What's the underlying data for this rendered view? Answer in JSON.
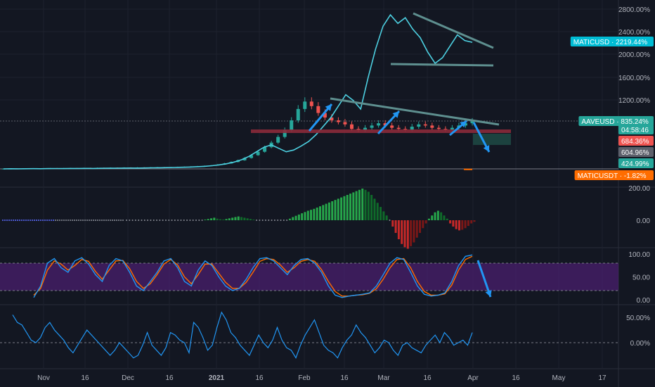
{
  "chart_data": {
    "type": "line",
    "x_axis": {
      "tick_labels": [
        "Nov",
        "16",
        "Dec",
        "16",
        "2021",
        "16",
        "Feb",
        "16",
        "Mar",
        "16",
        "Apr",
        "16",
        "May",
        "17"
      ],
      "bold_label": "2021"
    },
    "main_pane": {
      "y_tick_labels": [
        "2800.00%",
        "2400.00%",
        "2000.00%",
        "1600.00%",
        "1200.00%"
      ],
      "yscale": "percent",
      "series": [
        {
          "name": "AAVEUSD",
          "style": "candles",
          "color_up": "#26a69a",
          "color_down": "#ef5350",
          "closes": [
            3,
            5,
            4,
            7,
            6,
            9,
            8,
            11,
            10,
            12,
            14,
            13,
            16,
            15,
            18,
            17,
            20,
            19,
            22,
            21,
            24,
            23,
            26,
            28,
            27,
            30,
            33,
            36,
            40,
            45,
            52,
            60,
            75,
            95,
            120,
            150,
            190,
            240,
            300,
            380,
            460,
            560,
            680,
            850,
            1050,
            1180,
            1100,
            980,
            900,
            850,
            820,
            780,
            700,
            680,
            720,
            760,
            800,
            760,
            720,
            700,
            690,
            740,
            780,
            760,
            720,
            700,
            690,
            720,
            760,
            800,
            835
          ]
        },
        {
          "name": "MATICUSD",
          "style": "line",
          "color": "#4dd0e1",
          "values": [
            0,
            2,
            1,
            3,
            4,
            3,
            5,
            6,
            5,
            7,
            8,
            9,
            8,
            10,
            12,
            11,
            13,
            15,
            14,
            16,
            18,
            20,
            22,
            25,
            28,
            32,
            38,
            45,
            55,
            70,
            90,
            120,
            160,
            220,
            300,
            380,
            420,
            360,
            300,
            330,
            400,
            480,
            600,
            750,
            900,
            1100,
            1300,
            1200,
            1050,
            1600,
            2100,
            2500,
            2700,
            2550,
            2650,
            2450,
            2300,
            2050,
            1850,
            1950,
            2150,
            2350,
            2250,
            2219
          ]
        },
        {
          "name": "MATICUSDT",
          "style": "line",
          "color": "#ff6d00",
          "values": [
            -1.5,
            -1.82,
            -1.7,
            -1.82
          ]
        }
      ],
      "legend": [
        {
          "label": "MATICUSD",
          "value": "2219.44%",
          "color": "#00bcd4"
        },
        {
          "label": "AAVEUSD",
          "value": "835.24%",
          "color": "#26a69a"
        },
        {
          "label": "",
          "value": "04:58:46",
          "color": "#26a69a"
        },
        {
          "label": "",
          "value": "684.36%",
          "color": "#ef5350"
        },
        {
          "label": "",
          "value": "604.96%",
          "color": "#5d606b"
        },
        {
          "label": "",
          "value": "424.99%",
          "color": "#26a69a"
        },
        {
          "label": "MATICUSDT",
          "value": "-1.82%",
          "color": "#ff6d00"
        }
      ]
    },
    "histogram_pane": {
      "y_tick_labels": [
        "200.00",
        "0.00"
      ],
      "values": [
        0,
        0,
        0,
        0,
        0,
        0,
        0,
        0,
        0,
        0,
        0,
        0,
        0,
        0,
        0,
        0,
        0,
        0,
        0,
        0,
        0,
        0,
        0,
        0,
        0,
        0,
        2,
        4,
        6,
        8,
        5,
        3,
        2,
        4,
        6,
        8,
        10,
        12,
        10,
        8,
        6,
        4,
        2,
        0,
        0,
        0,
        0,
        0,
        0,
        0,
        0,
        0,
        0,
        0,
        5,
        10,
        14,
        18,
        22,
        26,
        30,
        33,
        36,
        40,
        44,
        48,
        52,
        56,
        60,
        64,
        68,
        72,
        76,
        80,
        84,
        88,
        92,
        96,
        100,
        96,
        90,
        80,
        68,
        55,
        42,
        28,
        15,
        0,
        -20,
        -40,
        -60,
        -75,
        -85,
        -90,
        -82,
        -70,
        -55,
        -40,
        -25,
        -10,
        5,
        15,
        25,
        30,
        25,
        15,
        5,
        -10,
        -20,
        -28,
        -32,
        -30,
        -25,
        -18,
        -10,
        -5
      ]
    },
    "stoch_pane": {
      "y_tick_labels": [
        "100.00",
        "50.00",
        "0.00"
      ],
      "band": [
        20,
        80
      ],
      "k": [
        5,
        30,
        80,
        90,
        70,
        60,
        85,
        92,
        78,
        55,
        40,
        75,
        90,
        85,
        60,
        30,
        20,
        40,
        60,
        85,
        90,
        70,
        40,
        30,
        65,
        85,
        75,
        50,
        30,
        20,
        25,
        45,
        70,
        90,
        92,
        85,
        70,
        55,
        75,
        88,
        90,
        80,
        60,
        30,
        10,
        5,
        8,
        10,
        12,
        15,
        30,
        55,
        80,
        92,
        88,
        60,
        30,
        12,
        8,
        10,
        15,
        40,
        75,
        95,
        98
      ],
      "d": [
        10,
        25,
        65,
        85,
        78,
        65,
        75,
        88,
        84,
        62,
        45,
        65,
        85,
        86,
        68,
        40,
        25,
        35,
        55,
        78,
        88,
        76,
        50,
        35,
        55,
        78,
        78,
        58,
        38,
        25,
        25,
        38,
        60,
        84,
        90,
        88,
        76,
        60,
        70,
        84,
        88,
        84,
        66,
        40,
        18,
        8,
        8,
        10,
        11,
        14,
        24,
        45,
        70,
        88,
        90,
        70,
        40,
        18,
        10,
        10,
        13,
        32,
        65,
        88,
        95
      ]
    },
    "roc_pane": {
      "y_tick_labels": [
        "50.00%",
        "0.00%"
      ],
      "values": [
        55,
        40,
        35,
        20,
        5,
        0,
        10,
        30,
        40,
        25,
        15,
        5,
        -10,
        -20,
        -5,
        10,
        25,
        15,
        5,
        -5,
        -15,
        -25,
        -15,
        0,
        -10,
        -20,
        -30,
        -25,
        -5,
        20,
        -5,
        -15,
        -25,
        -10,
        20,
        15,
        5,
        0,
        -20,
        40,
        30,
        10,
        -15,
        -5,
        30,
        60,
        45,
        20,
        10,
        -5,
        -15,
        -25,
        -5,
        15,
        0,
        -10,
        5,
        30,
        5,
        -10,
        -15,
        -30,
        -5,
        15,
        30,
        45,
        20,
        -5,
        -15,
        -20,
        -30,
        -10,
        5,
        15,
        35,
        20,
        10,
        -5,
        -20,
        -10,
        5,
        0,
        -15,
        -25,
        -5,
        0,
        -10,
        -15,
        -20,
        -5,
        5,
        15,
        0,
        20,
        10,
        -5,
        0,
        5,
        -5,
        20
      ]
    }
  }
}
